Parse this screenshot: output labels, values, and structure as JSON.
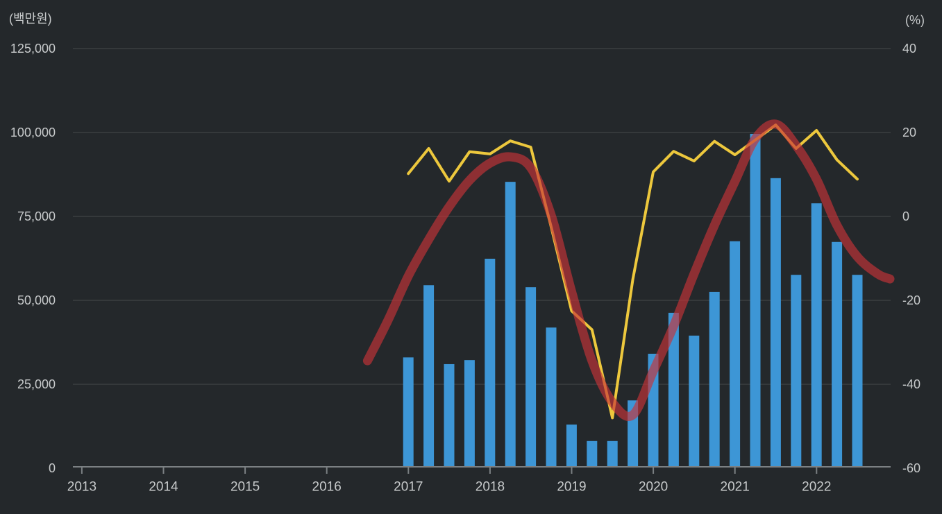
{
  "page": {
    "background_color": "#24282B",
    "text_color": "#C7CACB",
    "grid_color": "#35393B",
    "axis_color": "#7B8083"
  },
  "chart_data": {
    "type": "bar",
    "title": "",
    "legend": "none",
    "grid": true,
    "left_axis": {
      "unit_label": "(백만원)",
      "tick_labels": [
        "125,000",
        "100,000",
        "75,000",
        "50,000",
        "25,000",
        "0"
      ],
      "tick_values": [
        125000,
        100000,
        75000,
        50000,
        25000,
        0
      ],
      "range": [
        0,
        125000
      ]
    },
    "right_axis": {
      "unit_label": "(%)",
      "tick_labels": [
        "40",
        "20",
        "0",
        "-20",
        "-40",
        "-60"
      ],
      "tick_values": [
        40,
        20,
        0,
        -20,
        -40,
        -60
      ],
      "range": [
        -60,
        40
      ]
    },
    "x_axis": {
      "year_labels": [
        "2013",
        "2014",
        "2015",
        "2016",
        "2017",
        "2018",
        "2019",
        "2020",
        "2021",
        "2022"
      ]
    },
    "categories": [
      "2017 Q1",
      "2017 Q2",
      "2017 Q3",
      "2017 Q4",
      "2018 Q1",
      "2018 Q2",
      "2018 Q3",
      "2018 Q4",
      "2019 Q1",
      "2019 Q2",
      "2019 Q3",
      "2019 Q4",
      "2020 Q1",
      "2020 Q2",
      "2020 Q3",
      "2020 Q4",
      "2021 Q1",
      "2021 Q2",
      "2021 Q3",
      "2021 Q4",
      "2022 Q1",
      "2022 Q2",
      "2022 Q3"
    ],
    "series": [
      {
        "name": "quarterly-amount-bars",
        "type": "bar",
        "axis": "left",
        "unit": "백만원",
        "color": "#3D96D6",
        "values": [
          33000,
          54500,
          31000,
          32200,
          62400,
          85300,
          53900,
          41900,
          13000,
          8100,
          8100,
          20200,
          34100,
          46300,
          39500,
          52500,
          67600,
          99600,
          86400,
          57600,
          78900,
          67400,
          57600
        ]
      },
      {
        "name": "yoy-growth-line",
        "type": "line",
        "axis": "right",
        "unit": "%",
        "color": "#EDC83D",
        "values": [
          10.2,
          16.2,
          8.4,
          15.4,
          14.9,
          18.0,
          16.5,
          -2.5,
          -22.5,
          -27.0,
          -48.0,
          -15.0,
          10.6,
          15.5,
          13.2,
          17.9,
          14.7,
          18.2,
          21.8,
          16.2,
          20.5,
          13.5,
          8.9
        ]
      },
      {
        "name": "growth-trend-line",
        "type": "line",
        "axis": "right",
        "unit": "%",
        "color": "#C73338",
        "opacity": 0.65,
        "smooth": true,
        "points": [
          [
            -2,
            -34.4
          ],
          [
            -1,
            -24.8
          ],
          [
            0,
            -14.2
          ],
          [
            1,
            -5.5
          ],
          [
            2,
            2.3
          ],
          [
            3,
            8.6
          ],
          [
            4,
            12.7
          ],
          [
            5,
            14.2
          ],
          [
            6,
            11.6
          ],
          [
            7,
            0.3
          ],
          [
            8,
            -17.9
          ],
          [
            9,
            -34.4
          ],
          [
            10,
            -44.3
          ],
          [
            11,
            -47.3
          ],
          [
            12,
            -36.9
          ],
          [
            13,
            -26.1
          ],
          [
            14,
            -13.7
          ],
          [
            15,
            -2.1
          ],
          [
            16,
            8.3
          ],
          [
            17,
            18.5
          ],
          [
            18,
            22.0
          ],
          [
            19,
            16.9
          ],
          [
            20,
            8.9
          ],
          [
            21,
            -2.1
          ],
          [
            22,
            -9.6
          ],
          [
            23,
            -13.7
          ],
          [
            23.6,
            -14.9
          ]
        ]
      }
    ]
  }
}
